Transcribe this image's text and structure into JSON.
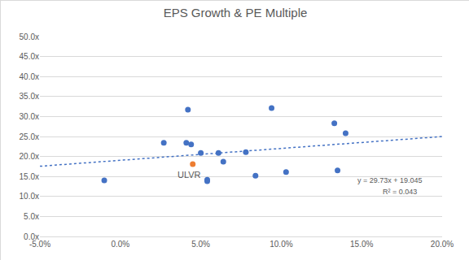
{
  "chart_data": {
    "type": "scatter",
    "title": "EPS Growth & PE Multiple",
    "series": [
      {
        "type": "scatter",
        "marker": "circle",
        "color": "#4472c4",
        "x": [
          -1.0,
          2.7,
          4.1,
          4.2,
          4.4,
          5.0,
          5.4,
          5.4,
          6.1,
          6.4,
          7.8,
          8.4,
          9.4,
          10.3,
          13.3,
          13.5,
          14.0
        ],
        "values": [
          14.0,
          23.4,
          23.4,
          31.7,
          23.0,
          20.9,
          14.2,
          13.8,
          20.9,
          18.7,
          21.1,
          15.2,
          32.1,
          16.1,
          28.3,
          16.5,
          25.8
        ]
      },
      {
        "type": "scatter",
        "marker": "circle",
        "color": "#ed7d31",
        "x": [
          4.5
        ],
        "values": [
          18.1
        ]
      },
      {
        "type": "line",
        "line_style": "dotted",
        "color": "#4472c4",
        "x": [
          -5,
          20
        ],
        "values": [
          17.56,
          24.99
        ]
      }
    ],
    "annotations": [
      {
        "text": "ULVR",
        "x": 4.5,
        "y": 18.1
      },
      {
        "text": "y = 29.73x + 19.045"
      },
      {
        "text": "R² = 0.043"
      }
    ],
    "xlim": [
      -5,
      20
    ],
    "xticks": [
      {
        "value": -5,
        "label": "-5.0%"
      },
      {
        "value": 0,
        "label": "0.0%"
      },
      {
        "value": 5,
        "label": "5.0%"
      },
      {
        "value": 10,
        "label": "10.0%"
      },
      {
        "value": 15,
        "label": "15.0%"
      },
      {
        "value": 20,
        "label": "20.0%"
      }
    ],
    "ylim": [
      0,
      50
    ],
    "yticks": [
      {
        "value": 0,
        "label": "0.0x"
      },
      {
        "value": 5,
        "label": "5.0x"
      },
      {
        "value": 10,
        "label": "10.0x"
      },
      {
        "value": 15,
        "label": "15.0x"
      },
      {
        "value": 20,
        "label": "20.0x"
      },
      {
        "value": 25,
        "label": "25.0x"
      },
      {
        "value": 30,
        "label": "30.0x"
      },
      {
        "value": 35,
        "label": "35.0x"
      },
      {
        "value": 40,
        "label": "40.0x"
      },
      {
        "value": 45,
        "label": "45.0x"
      },
      {
        "value": 50,
        "label": "50.0x"
      }
    ],
    "grid": true
  }
}
